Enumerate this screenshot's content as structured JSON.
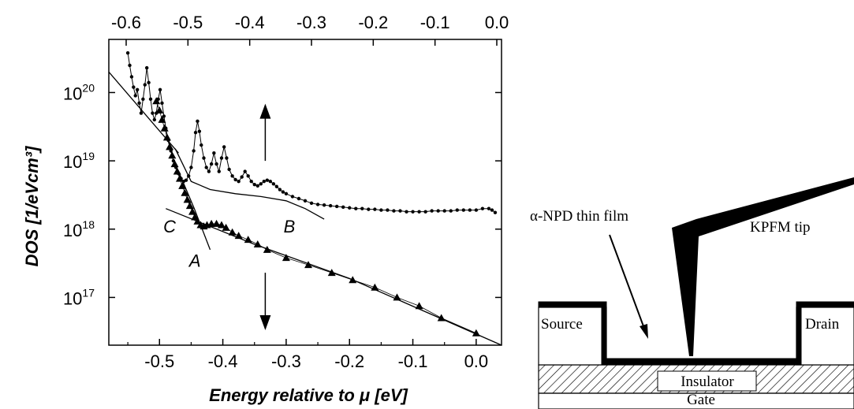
{
  "chart_data": {
    "type": "scatter",
    "scale_y": "log",
    "xlabel": "Energy relative to μ [eV]",
    "ylabel": "DOS [1/eVcm³]",
    "xlim": [
      -0.58,
      0.04
    ],
    "ylim": [
      2e+16,
      6e+20
    ],
    "x_ticks": [
      "-0.5",
      "-0.4",
      "-0.3",
      "-0.2",
      "-0.1",
      "0.0"
    ],
    "x_tick_values": [
      -0.5,
      -0.4,
      -0.3,
      -0.2,
      -0.1,
      0.0
    ],
    "top_ticks": [
      "-0.6",
      "-0.5",
      "-0.4",
      "-0.3",
      "-0.2",
      "-0.1",
      "0.0"
    ],
    "top_tick_values": [
      -0.6,
      -0.5,
      -0.4,
      -0.3,
      -0.2,
      -0.1,
      0.0
    ],
    "y_ticks": [
      {
        "base": "10",
        "exp": "20",
        "value": 1e+20
      },
      {
        "base": "10",
        "exp": "19",
        "value": 1e+19
      },
      {
        "base": "10",
        "exp": "18",
        "value": 1e+18
      },
      {
        "base": "10",
        "exp": "17",
        "value": 1e+17
      }
    ],
    "grid": false,
    "series": [
      {
        "marker": "dot",
        "points": [
          [
            -0.55,
            3.8e+20
          ],
          [
            -0.547,
            2.5e+20
          ],
          [
            -0.544,
            1.7e+20
          ],
          [
            -0.541,
            1.2e+20
          ],
          [
            -0.538,
            9e+19
          ],
          [
            -0.535,
            1.1e+20
          ],
          [
            -0.532,
            7e+19
          ],
          [
            -0.529,
            5e+19
          ],
          [
            -0.526,
            8e+19
          ],
          [
            -0.523,
            1.3e+20
          ],
          [
            -0.52,
            2.3e+20
          ],
          [
            -0.517,
            1.4e+20
          ],
          [
            -0.514,
            8e+19
          ],
          [
            -0.511,
            5e+19
          ],
          [
            -0.508,
            4e+19
          ],
          [
            -0.505,
            5e+19
          ],
          [
            -0.502,
            8e+19
          ],
          [
            -0.499,
            1.1e+20
          ],
          [
            -0.496,
            7e+19
          ],
          [
            -0.493,
            4.5e+19
          ],
          [
            -0.49,
            3e+19
          ],
          [
            -0.486,
            2e+19
          ],
          [
            -0.482,
            1.4e+19
          ],
          [
            -0.478,
            1e+19
          ],
          [
            -0.474,
            8e+18
          ],
          [
            -0.47,
            6.5e+18
          ],
          [
            -0.466,
            5.5e+18
          ],
          [
            -0.462,
            5e+18
          ],
          [
            -0.458,
            5.2e+18
          ],
          [
            -0.454,
            6e+18
          ],
          [
            -0.45,
            8e+18
          ],
          [
            -0.446,
            1.4e+19
          ],
          [
            -0.443,
            2.6e+19
          ],
          [
            -0.44,
            3.8e+19
          ],
          [
            -0.437,
            2.7e+19
          ],
          [
            -0.434,
            1.7e+19
          ],
          [
            -0.43,
            1.1e+19
          ],
          [
            -0.426,
            8e+18
          ],
          [
            -0.422,
            7e+18
          ],
          [
            -0.418,
            9e+18
          ],
          [
            -0.414,
            1.3e+19
          ],
          [
            -0.41,
            9e+18
          ],
          [
            -0.406,
            7e+18
          ],
          [
            -0.402,
            1.1e+19
          ],
          [
            -0.398,
            1.6e+19
          ],
          [
            -0.394,
            1.1e+19
          ],
          [
            -0.39,
            7.5e+18
          ],
          [
            -0.385,
            6e+18
          ],
          [
            -0.38,
            5.3e+18
          ],
          [
            -0.375,
            5e+18
          ],
          [
            -0.37,
            5.8e+18
          ],
          [
            -0.365,
            7e+18
          ],
          [
            -0.36,
            6e+18
          ],
          [
            -0.355,
            5e+18
          ],
          [
            -0.35,
            4.5e+18
          ],
          [
            -0.345,
            4.3e+18
          ],
          [
            -0.34,
            4.6e+18
          ],
          [
            -0.335,
            5e+18
          ],
          [
            -0.33,
            5.2e+18
          ],
          [
            -0.325,
            5e+18
          ],
          [
            -0.32,
            4.6e+18
          ],
          [
            -0.315,
            4.2e+18
          ],
          [
            -0.31,
            3.8e+18
          ],
          [
            -0.305,
            3.5e+18
          ],
          [
            -0.3,
            3.3e+18
          ],
          [
            -0.29,
            3e+18
          ],
          [
            -0.28,
            2.8e+18
          ],
          [
            -0.27,
            2.6e+18
          ],
          [
            -0.26,
            2.4e+18
          ],
          [
            -0.25,
            2.3e+18
          ],
          [
            -0.24,
            2.25e+18
          ],
          [
            -0.23,
            2.2e+18
          ],
          [
            -0.22,
            2.15e+18
          ],
          [
            -0.21,
            2.1e+18
          ],
          [
            -0.2,
            2.05e+18
          ],
          [
            -0.19,
            2e+18
          ],
          [
            -0.18,
            2e+18
          ],
          [
            -0.17,
            1.95e+18
          ],
          [
            -0.16,
            1.95e+18
          ],
          [
            -0.15,
            1.9e+18
          ],
          [
            -0.14,
            1.9e+18
          ],
          [
            -0.13,
            1.85e+18
          ],
          [
            -0.12,
            1.85e+18
          ],
          [
            -0.11,
            1.8e+18
          ],
          [
            -0.1,
            1.8e+18
          ],
          [
            -0.09,
            1.8e+18
          ],
          [
            -0.08,
            1.8e+18
          ],
          [
            -0.07,
            1.85e+18
          ],
          [
            -0.06,
            1.85e+18
          ],
          [
            -0.05,
            1.85e+18
          ],
          [
            -0.04,
            1.85e+18
          ],
          [
            -0.03,
            1.9e+18
          ],
          [
            -0.02,
            1.9e+18
          ],
          [
            -0.01,
            1.9e+18
          ],
          [
            0.0,
            1.9e+18
          ],
          [
            0.01,
            2e+18
          ],
          [
            0.02,
            2e+18
          ],
          [
            0.025,
            1.9e+18
          ],
          [
            0.03,
            1.75e+18
          ]
        ]
      },
      {
        "marker": "triangle",
        "points": [
          [
            -0.505,
            7.5e+19
          ],
          [
            -0.5,
            5.5e+19
          ],
          [
            -0.496,
            4e+19
          ],
          [
            -0.492,
            3e+19
          ],
          [
            -0.488,
            2.2e+19
          ],
          [
            -0.484,
            1.6e+19
          ],
          [
            -0.48,
            1.2e+19
          ],
          [
            -0.476,
            9e+18
          ],
          [
            -0.472,
            7e+18
          ],
          [
            -0.468,
            5.5e+18
          ],
          [
            -0.464,
            4.3e+18
          ],
          [
            -0.46,
            3.4e+18
          ],
          [
            -0.456,
            2.7e+18
          ],
          [
            -0.452,
            2.2e+18
          ],
          [
            -0.448,
            1.8e+18
          ],
          [
            -0.444,
            1.5e+18
          ],
          [
            -0.44,
            1.3e+18
          ],
          [
            -0.435,
            1.15e+18
          ],
          [
            -0.43,
            1.1e+18
          ],
          [
            -0.425,
            1.15e+18
          ],
          [
            -0.418,
            1.2e+18
          ],
          [
            -0.41,
            1.2e+18
          ],
          [
            -0.402,
            1.15e+18
          ],
          [
            -0.395,
            1.05e+18
          ],
          [
            -0.385,
            9e+17
          ],
          [
            -0.375,
            8e+17
          ],
          [
            -0.36,
            7e+17
          ],
          [
            -0.345,
            6e+17
          ],
          [
            -0.33,
            5e+17
          ],
          [
            -0.3,
            3.8e+17
          ],
          [
            -0.265,
            3e+17
          ],
          [
            -0.228,
            2.3e+17
          ],
          [
            -0.195,
            1.8e+17
          ],
          [
            -0.16,
            1.4e+17
          ],
          [
            -0.125,
            1e+17
          ],
          [
            -0.09,
            7.5e+16
          ],
          [
            -0.055,
            5e+16
          ],
          [
            0.0,
            3e+16
          ]
        ]
      }
    ],
    "fit_lines": [
      [
        [
          -0.58,
          2e+20
        ],
        [
          -0.47,
          1.3e+19
        ]
      ],
      [
        [
          -0.475,
          1.5e+19
        ],
        [
          -0.45,
          5e+18
        ],
        [
          -0.42,
          3.8e+18
        ],
        [
          -0.38,
          3.3e+18
        ],
        [
          -0.34,
          3e+18
        ],
        [
          -0.3,
          2.6e+18
        ],
        [
          -0.27,
          2e+18
        ],
        [
          -0.24,
          1.4e+18
        ]
      ],
      [
        [
          -0.49,
          2e+18
        ],
        [
          -0.35,
          6e+17
        ],
        [
          -0.2,
          1.9e+17
        ],
        [
          0.04,
          2e+16
        ]
      ],
      [
        [
          -0.47,
          7e+18
        ],
        [
          -0.445,
          2e+18
        ],
        [
          -0.42,
          5e+17
        ]
      ]
    ],
    "annotations": [
      {
        "text": "A",
        "x": -0.444,
        "y": 3.5e+17
      },
      {
        "text": "B",
        "x": -0.295,
        "y": 1.1e+18
      },
      {
        "text": "C",
        "x": -0.484,
        "y": 1.1e+18
      }
    ],
    "arrows": [
      {
        "x": -0.333,
        "y_from": 1e+19,
        "y_to": 6.5e+19,
        "direction": "up"
      },
      {
        "x": -0.333,
        "y_from": 2.3e+17,
        "y_to": 3.5e+16,
        "direction": "down"
      }
    ]
  },
  "diagram": {
    "film_label": "α-NPD thin film",
    "tip_label": "KPFM tip",
    "source_label": "Source",
    "drain_label": "Drain",
    "insulator_label": "Insulator",
    "gate_label": "Gate"
  }
}
